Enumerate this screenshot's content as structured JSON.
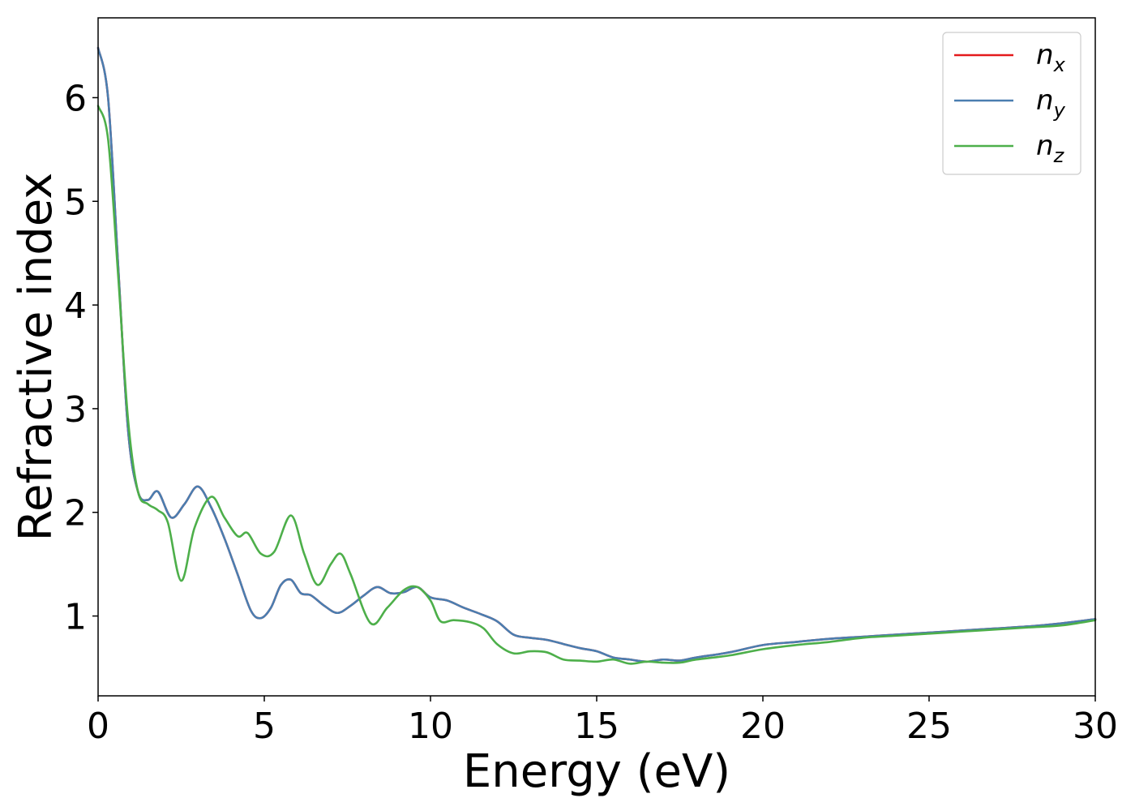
{
  "chart_data": {
    "type": "line",
    "title": "",
    "xlabel": "Energy (eV)",
    "ylabel": "Refractive index",
    "xlim": [
      0,
      30
    ],
    "ylim": [
      0.23,
      6.77
    ],
    "xticks": [
      0,
      5,
      10,
      15,
      20,
      25,
      30
    ],
    "yticks": [
      1,
      2,
      3,
      4,
      5,
      6
    ],
    "grid": false,
    "legend_position": "top-right",
    "series": [
      {
        "name": "n",
        "subscript": "x",
        "color": "#e41a1c",
        "x": [
          0,
          0.3,
          0.6,
          0.9,
          1.2,
          1.5,
          1.8,
          2.2,
          2.6,
          3.0,
          3.4,
          3.8,
          4.2,
          4.6,
          4.9,
          5.2,
          5.5,
          5.8,
          6.1,
          6.4,
          6.8,
          7.2,
          7.6,
          8.0,
          8.4,
          8.8,
          9.2,
          9.6,
          10.0,
          10.5,
          11.0,
          11.5,
          12.0,
          12.5,
          13.0,
          13.5,
          14.0,
          14.5,
          15.0,
          15.5,
          16.0,
          16.5,
          17.0,
          17.5,
          18.0,
          19.0,
          20.0,
          21.0,
          22.0,
          23.0,
          24.0,
          25.0,
          26.0,
          27.0,
          28.0,
          29.0,
          30.0
        ],
        "y": [
          6.48,
          6.0,
          4.4,
          2.8,
          2.2,
          2.12,
          2.2,
          1.95,
          2.08,
          2.25,
          2.05,
          1.75,
          1.4,
          1.05,
          0.98,
          1.08,
          1.3,
          1.35,
          1.22,
          1.2,
          1.1,
          1.03,
          1.1,
          1.2,
          1.28,
          1.22,
          1.23,
          1.28,
          1.18,
          1.15,
          1.08,
          1.02,
          0.95,
          0.82,
          0.79,
          0.77,
          0.73,
          0.69,
          0.66,
          0.6,
          0.58,
          0.56,
          0.58,
          0.57,
          0.6,
          0.65,
          0.72,
          0.75,
          0.78,
          0.8,
          0.82,
          0.84,
          0.86,
          0.88,
          0.9,
          0.93,
          0.97
        ]
      },
      {
        "name": "n",
        "subscript": "y",
        "color": "#4a7eb0",
        "x": [
          0,
          0.3,
          0.6,
          0.9,
          1.2,
          1.5,
          1.8,
          2.2,
          2.6,
          3.0,
          3.4,
          3.8,
          4.2,
          4.6,
          4.9,
          5.2,
          5.5,
          5.8,
          6.1,
          6.4,
          6.8,
          7.2,
          7.6,
          8.0,
          8.4,
          8.8,
          9.2,
          9.6,
          10.0,
          10.5,
          11.0,
          11.5,
          12.0,
          12.5,
          13.0,
          13.5,
          14.0,
          14.5,
          15.0,
          15.5,
          16.0,
          16.5,
          17.0,
          17.5,
          18.0,
          19.0,
          20.0,
          21.0,
          22.0,
          23.0,
          24.0,
          25.0,
          26.0,
          27.0,
          28.0,
          29.0,
          30.0
        ],
        "y": [
          6.48,
          6.0,
          4.4,
          2.8,
          2.2,
          2.12,
          2.2,
          1.95,
          2.08,
          2.25,
          2.05,
          1.75,
          1.4,
          1.05,
          0.98,
          1.08,
          1.3,
          1.35,
          1.22,
          1.2,
          1.1,
          1.03,
          1.1,
          1.2,
          1.28,
          1.22,
          1.23,
          1.28,
          1.18,
          1.15,
          1.08,
          1.02,
          0.95,
          0.82,
          0.79,
          0.77,
          0.73,
          0.69,
          0.66,
          0.6,
          0.58,
          0.56,
          0.58,
          0.57,
          0.6,
          0.65,
          0.72,
          0.75,
          0.78,
          0.8,
          0.82,
          0.84,
          0.86,
          0.88,
          0.9,
          0.93,
          0.97
        ]
      },
      {
        "name": "n",
        "subscript": "z",
        "color": "#4daf4a",
        "x": [
          0,
          0.3,
          0.6,
          0.9,
          1.2,
          1.5,
          1.8,
          2.1,
          2.5,
          2.9,
          3.4,
          3.8,
          4.2,
          4.5,
          4.9,
          5.3,
          5.8,
          6.2,
          6.6,
          7.0,
          7.3,
          7.6,
          8.2,
          8.7,
          9.2,
          9.6,
          10.0,
          10.3,
          10.7,
          11.2,
          11.6,
          12.0,
          12.5,
          13.0,
          13.5,
          14.0,
          14.5,
          15.0,
          15.5,
          16.0,
          16.5,
          17.0,
          17.5,
          18.0,
          19.0,
          20.0,
          21.0,
          22.0,
          23.0,
          24.0,
          25.0,
          26.0,
          27.0,
          28.0,
          29.0,
          30.0
        ],
        "y": [
          5.92,
          5.6,
          4.3,
          2.9,
          2.2,
          2.08,
          2.02,
          1.9,
          1.34,
          1.85,
          2.15,
          1.95,
          1.77,
          1.8,
          1.6,
          1.62,
          1.97,
          1.6,
          1.3,
          1.5,
          1.6,
          1.4,
          0.93,
          1.08,
          1.25,
          1.28,
          1.15,
          0.95,
          0.96,
          0.94,
          0.88,
          0.73,
          0.64,
          0.66,
          0.65,
          0.58,
          0.57,
          0.56,
          0.58,
          0.54,
          0.56,
          0.55,
          0.55,
          0.58,
          0.62,
          0.68,
          0.72,
          0.75,
          0.79,
          0.81,
          0.83,
          0.85,
          0.87,
          0.89,
          0.91,
          0.96
        ]
      }
    ]
  }
}
